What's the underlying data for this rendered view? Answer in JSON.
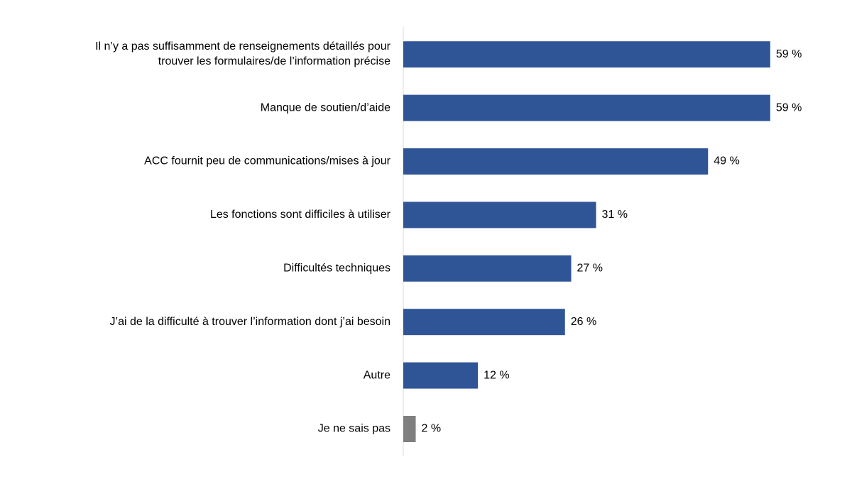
{
  "chart_data": {
    "type": "hbar",
    "categories": [
      "Il n’y a pas suffisamment de renseignements détaillés pour\ntrouver les formulaires/de l’information précise",
      "Manque de soutien/d’aide",
      "ACC fournit peu de communications/mises à jour",
      "Les fonctions sont difficiles à utiliser",
      "Difficultés techniques",
      "J’ai de la difficulté à trouver l’information dont j’ai besoin",
      "Autre",
      "Je ne sais pas"
    ],
    "values": [
      59,
      59,
      49,
      31,
      27,
      26,
      12,
      2
    ],
    "value_labels": [
      "59 %",
      "59 %",
      "49 %",
      "31 %",
      "27 %",
      "26 %",
      "12 %",
      "2 %"
    ],
    "colors": [
      "#2f5597",
      "#2f5597",
      "#2f5597",
      "#2f5597",
      "#2f5597",
      "#2f5597",
      "#2f5597",
      "#7f7f7f"
    ]
  }
}
